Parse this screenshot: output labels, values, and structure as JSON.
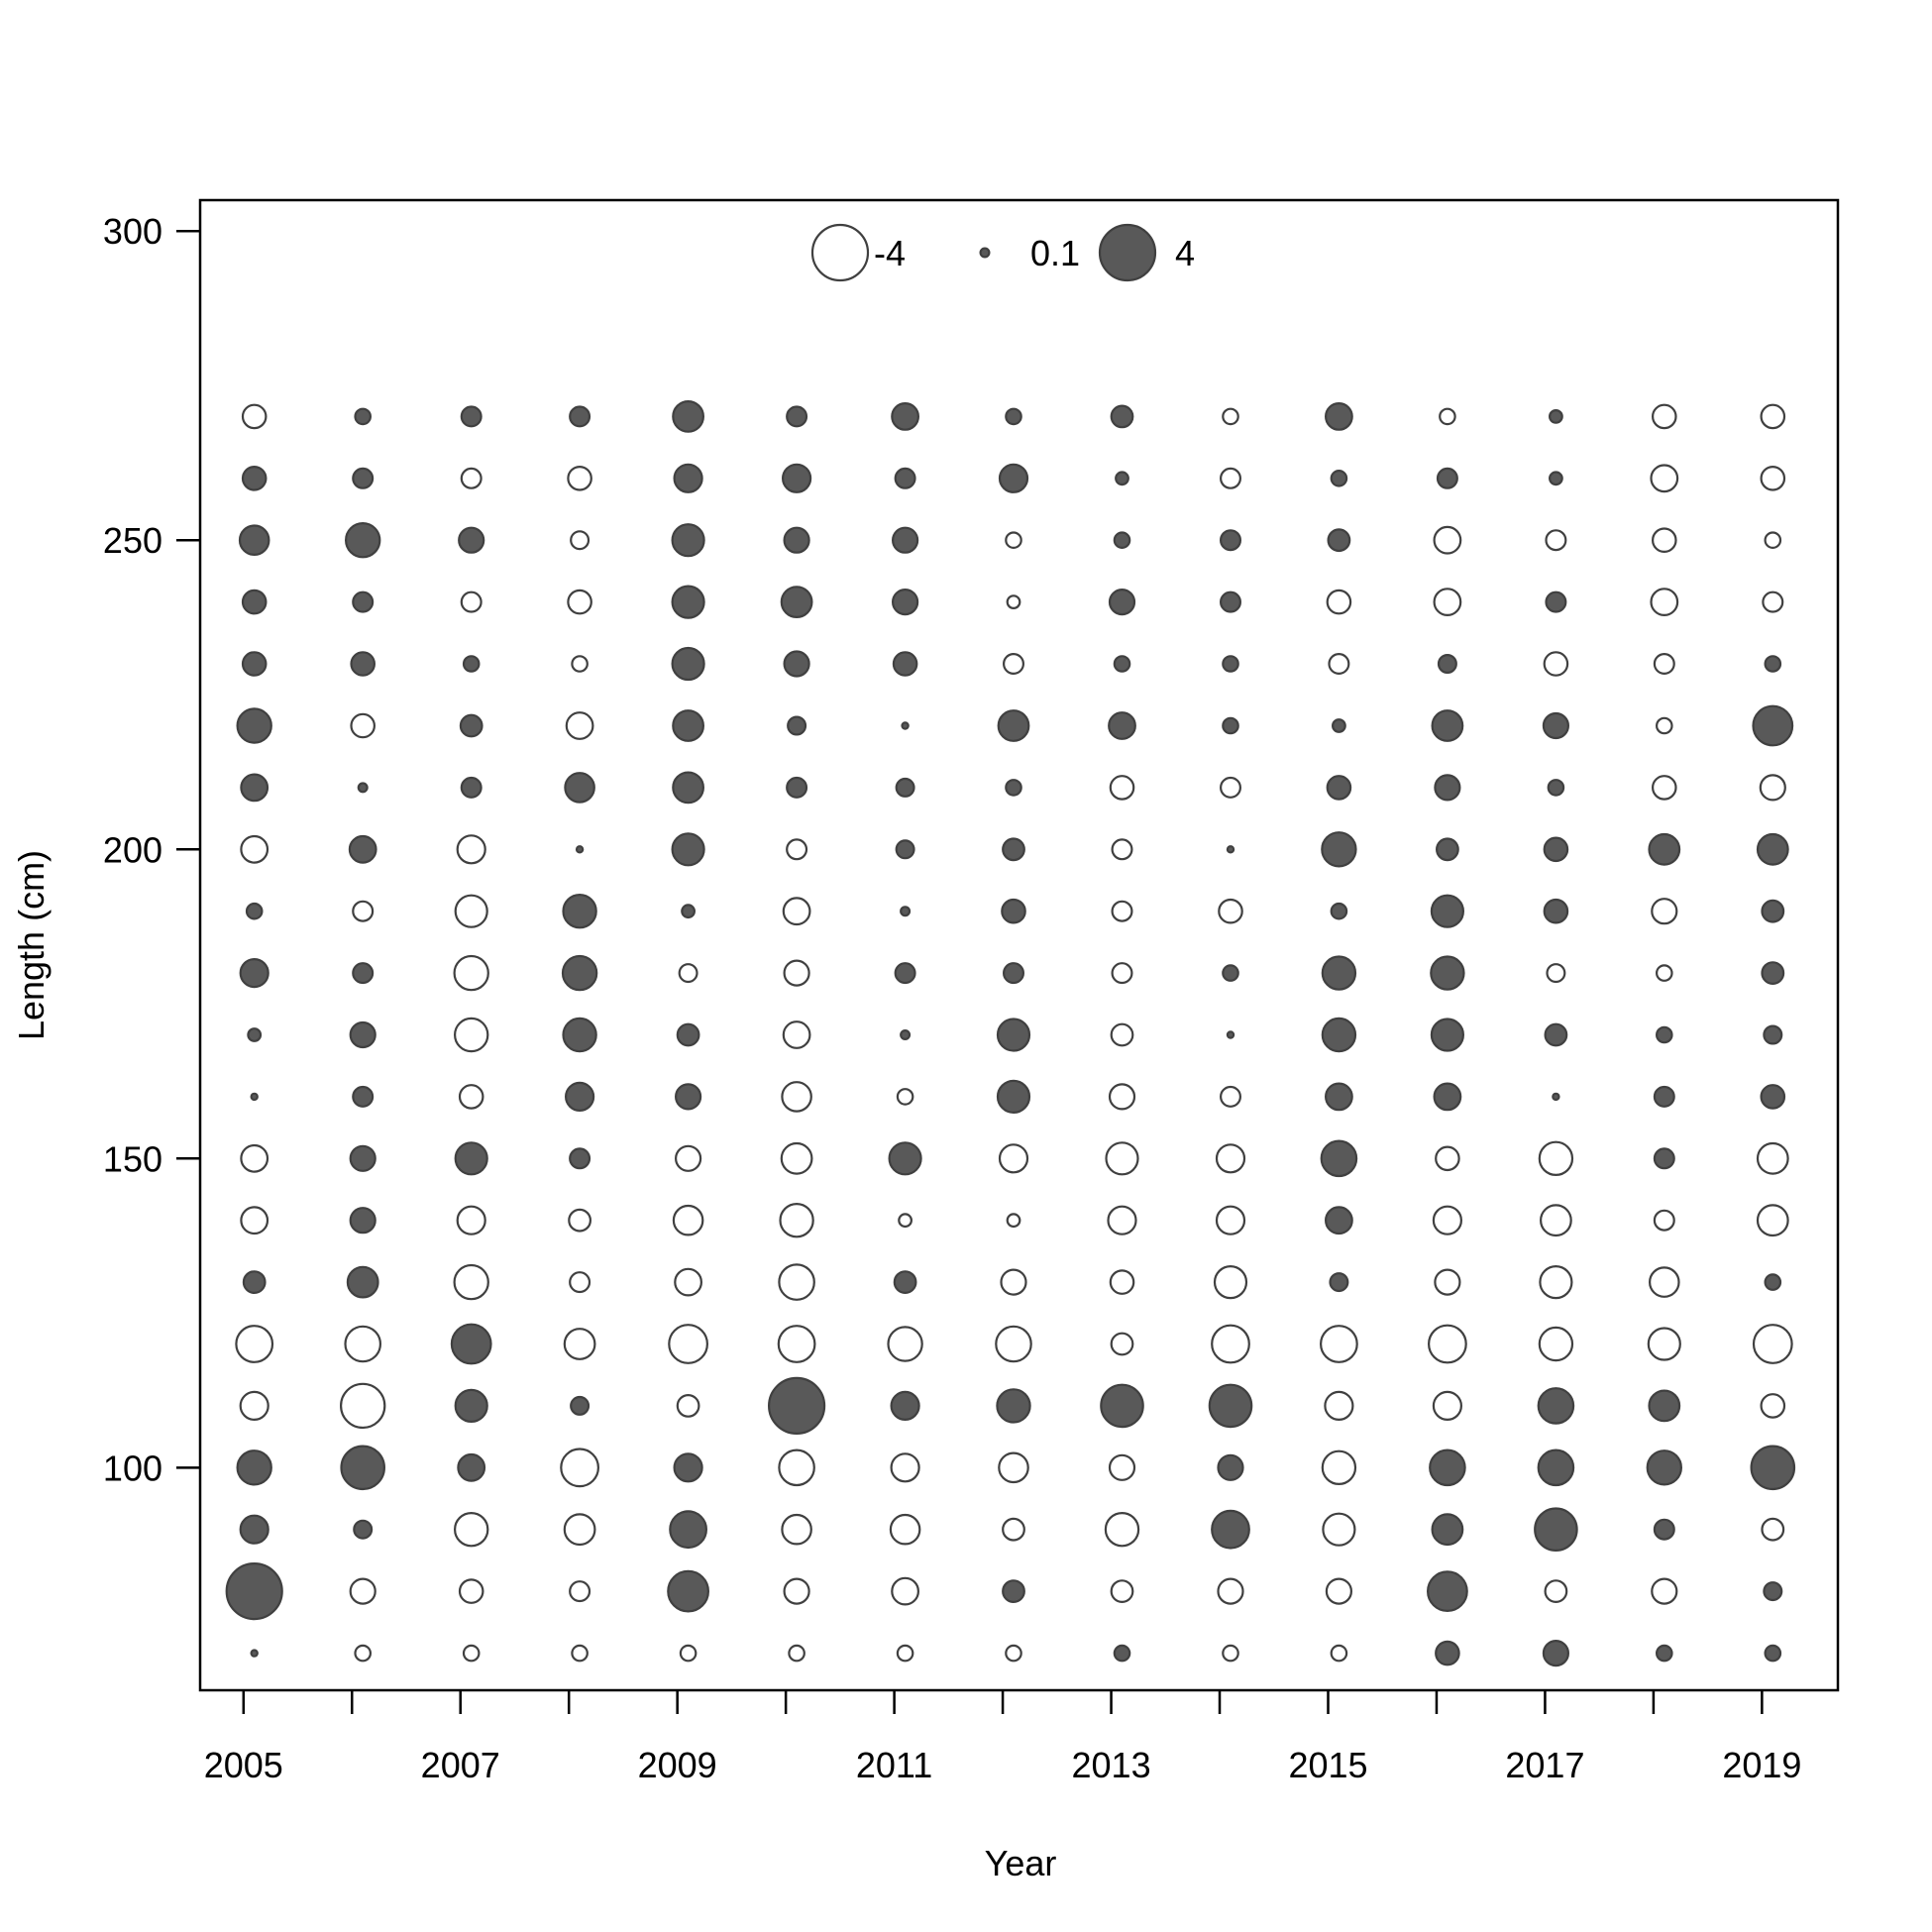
{
  "chart_data": {
    "type": "scatter",
    "subtype": "bubble",
    "title": "",
    "xlabel": "Year",
    "ylabel": "Length (cm)",
    "xlim": [
      2004.6,
      2019.7
    ],
    "ylim": [
      64,
      305
    ],
    "x_ticks": [
      2005,
      2006,
      2007,
      2008,
      2009,
      2010,
      2011,
      2012,
      2013,
      2014,
      2015,
      2016,
      2017,
      2018,
      2019
    ],
    "x_tick_labels": [
      "2005",
      "",
      "2007",
      "",
      "2009",
      "",
      "2011",
      "",
      "2013",
      "",
      "2015",
      "",
      "2017",
      "",
      "2019"
    ],
    "y_ticks": [
      100,
      150,
      200,
      250,
      300
    ],
    "y_tick_labels": [
      "100",
      "150",
      "200",
      "250",
      "300"
    ],
    "colors": {
      "positive": "#595959",
      "negative": "#ffffff",
      "stroke": "#404040"
    },
    "legend": {
      "placement": "top-center",
      "entries": [
        {
          "label": "-4",
          "value": -4
        },
        {
          "label": "0.1",
          "value": 0.1
        },
        {
          "label": "4",
          "value": 4
        }
      ]
    },
    "years": [
      2005.1,
      2006.1,
      2007.1,
      2008.1,
      2009.1,
      2010.1,
      2011.1,
      2012.1,
      2013.1,
      2014.1,
      2015.1,
      2016.1,
      2017.1,
      2018.1,
      2019.1
    ],
    "lengths": [
      70,
      80,
      90,
      100,
      110,
      120,
      130,
      140,
      150,
      160,
      170,
      180,
      190,
      200,
      210,
      220,
      230,
      240,
      250,
      260,
      270
    ],
    "residuals": [
      [
        0.05,
        4.0,
        1.0,
        1.5,
        -1.0,
        -1.7,
        0.6,
        -0.9,
        -0.9,
        0.05,
        0.2,
        1.0,
        0.3,
        -0.9,
        0.9,
        1.5,
        0.7,
        0.7,
        1.1,
        0.7,
        -0.7
      ],
      [
        -0.3,
        -0.8,
        0.4,
        2.4,
        -2.5,
        -1.6,
        1.2,
        0.8,
        0.8,
        0.5,
        0.8,
        0.5,
        -0.5,
        0.9,
        0.1,
        -0.7,
        0.7,
        0.5,
        1.5,
        0.5,
        0.3
      ],
      [
        -0.3,
        -0.7,
        -1.4,
        0.9,
        1.3,
        2.0,
        -1.5,
        -1.0,
        1.3,
        -0.7,
        -1.4,
        -1.5,
        -1.3,
        -1.0,
        0.5,
        0.6,
        0.3,
        -0.5,
        0.8,
        -0.5,
        0.5
      ],
      [
        -0.3,
        -0.5,
        -1.2,
        -1.8,
        0.4,
        -1.2,
        -0.5,
        -0.6,
        0.5,
        1.0,
        1.4,
        1.5,
        1.4,
        0.05,
        1.1,
        -0.9,
        -0.3,
        -0.7,
        -0.4,
        -0.7,
        0.5
      ],
      [
        -0.3,
        2.1,
        1.7,
        1.0,
        -0.6,
        -1.9,
        -0.9,
        -1.1,
        -0.8,
        0.8,
        0.6,
        -0.4,
        0.2,
        1.3,
        1.2,
        1.2,
        1.3,
        1.3,
        1.3,
        1.0,
        1.2
      ],
      [
        -0.3,
        -0.8,
        -1.1,
        -1.6,
        4.0,
        -1.7,
        -1.6,
        -1.4,
        -1.2,
        -1.1,
        -0.9,
        -0.8,
        -0.9,
        -0.5,
        0.5,
        0.4,
        0.8,
        1.2,
        0.8,
        1.0,
        0.5
      ],
      [
        -0.3,
        -0.9,
        -1.1,
        -1.0,
        1.0,
        -1.5,
        0.6,
        -0.2,
        1.3,
        -0.3,
        0.1,
        0.5,
        0.1,
        0.4,
        0.4,
        0.05,
        0.7,
        0.8,
        0.8,
        0.5,
        0.9
      ],
      [
        -0.3,
        0.6,
        -0.6,
        -1.1,
        1.4,
        -1.6,
        -0.8,
        -0.2,
        -1.0,
        1.3,
        1.3,
        0.5,
        0.7,
        0.6,
        0.3,
        1.2,
        -0.5,
        -0.2,
        -0.3,
        1.0,
        0.3
      ],
      [
        0.3,
        -0.6,
        -1.4,
        -0.8,
        2.3,
        -0.6,
        -0.7,
        -1.0,
        -1.3,
        -0.8,
        -0.6,
        -0.5,
        -0.5,
        -0.5,
        -0.7,
        0.9,
        0.3,
        0.8,
        0.3,
        0.2,
        0.6
      ],
      [
        -0.3,
        -0.8,
        1.8,
        0.8,
        2.3,
        -1.8,
        -1.3,
        -1.0,
        -1.0,
        -0.5,
        0.05,
        0.3,
        -0.7,
        0.05,
        -0.5,
        0.3,
        0.3,
        0.5,
        0.5,
        -0.5,
        -0.3
      ],
      [
        -0.3,
        -0.8,
        -1.3,
        -1.4,
        -1.0,
        -1.7,
        0.4,
        0.9,
        1.6,
        0.9,
        1.4,
        1.4,
        0.3,
        1.5,
        0.7,
        0.2,
        -0.5,
        -0.7,
        0.6,
        0.3,
        0.9
      ],
      [
        0.7,
        2.0,
        1.2,
        1.6,
        -1.0,
        -1.8,
        -0.8,
        -1.0,
        -0.7,
        0.9,
        1.3,
        1.4,
        1.3,
        0.6,
        0.8,
        1.2,
        0.4,
        -0.9,
        -0.9,
        0.5,
        -0.3
      ],
      [
        0.8,
        -0.6,
        2.3,
        1.6,
        1.6,
        -1.4,
        -1.3,
        -1.2,
        -1.4,
        0.05,
        0.6,
        -0.4,
        0.7,
        0.7,
        0.3,
        0.8,
        -0.7,
        0.5,
        -0.5,
        0.2,
        0.2
      ],
      [
        0.3,
        -0.8,
        0.5,
        1.5,
        1.2,
        -1.3,
        -1.1,
        -0.5,
        0.5,
        0.5,
        0.3,
        -0.3,
        -0.8,
        1.2,
        -0.7,
        -0.3,
        -0.5,
        -0.9,
        -0.7,
        -0.9,
        -0.7
      ],
      [
        0.3,
        0.4,
        -0.6,
        2.4,
        -0.7,
        -1.9,
        0.3,
        -1.2,
        -1.2,
        0.7,
        0.4,
        0.6,
        0.6,
        1.2,
        -0.8,
        2.0,
        0.3,
        -0.5,
        -0.3,
        -0.7,
        -0.7
      ]
    ]
  }
}
